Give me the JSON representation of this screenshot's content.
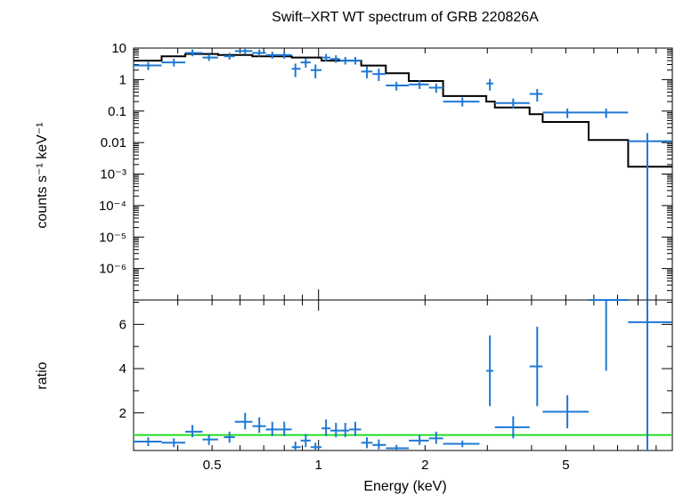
{
  "chart_data": [
    {
      "type": "scatter",
      "panel": "spectrum",
      "title": "Swift–XRT WT spectrum of GRB 220826A",
      "xlabel": "Energy (keV)",
      "ylabel": "counts s⁻¹ keV⁻¹",
      "xscale": "log",
      "yscale": "log",
      "xlim": [
        0.3,
        10.0
      ],
      "ylim": [
        1e-07,
        10
      ],
      "y_ticks": [
        {
          "v": 10,
          "label": "10"
        },
        {
          "v": 1,
          "label": "1"
        },
        {
          "v": 0.1,
          "label": "0.1"
        },
        {
          "v": 0.01,
          "label": "0.01"
        },
        {
          "v": 0.001,
          "label": "10⁻³"
        },
        {
          "v": 0.0001,
          "label": "10⁻⁴"
        },
        {
          "v": 1e-05,
          "label": "10⁻⁵"
        },
        {
          "v": 1e-06,
          "label": "10⁻⁶"
        }
      ],
      "series": [
        {
          "kind": "data",
          "color": "#1f78d4",
          "points": [
            {
              "x": 0.33,
              "xlo": 0.3,
              "xhi": 0.36,
              "y": 2.8,
              "ylo": 2.0,
              "yhi": 3.6
            },
            {
              "x": 0.39,
              "xlo": 0.36,
              "xhi": 0.42,
              "y": 3.5,
              "ylo": 2.6,
              "yhi": 4.6
            },
            {
              "x": 0.44,
              "xlo": 0.42,
              "xhi": 0.47,
              "y": 7.0,
              "ylo": 5.5,
              "yhi": 9.0
            },
            {
              "x": 0.49,
              "xlo": 0.47,
              "xhi": 0.52,
              "y": 5.0,
              "ylo": 3.9,
              "yhi": 6.4
            },
            {
              "x": 0.56,
              "xlo": 0.54,
              "xhi": 0.58,
              "y": 5.5,
              "ylo": 4.3,
              "yhi": 7.0
            },
            {
              "x": 0.62,
              "xlo": 0.58,
              "xhi": 0.65,
              "y": 8.0,
              "ylo": 6.2,
              "yhi": 10.0
            },
            {
              "x": 0.68,
              "xlo": 0.65,
              "xhi": 0.71,
              "y": 7.0,
              "ylo": 5.4,
              "yhi": 9.0
            },
            {
              "x": 0.74,
              "xlo": 0.71,
              "xhi": 0.77,
              "y": 6.0,
              "ylo": 4.6,
              "yhi": 7.6
            },
            {
              "x": 0.8,
              "xlo": 0.77,
              "xhi": 0.84,
              "y": 6.0,
              "ylo": 4.6,
              "yhi": 7.6
            },
            {
              "x": 0.86,
              "xlo": 0.84,
              "xhi": 0.89,
              "y": 2.2,
              "ylo": 1.2,
              "yhi": 3.2
            },
            {
              "x": 0.92,
              "xlo": 0.89,
              "xhi": 0.95,
              "y": 3.5,
              "ylo": 2.4,
              "yhi": 4.8
            },
            {
              "x": 0.98,
              "xlo": 0.95,
              "xhi": 1.02,
              "y": 2.0,
              "ylo": 1.1,
              "yhi": 3.0
            },
            {
              "x": 1.05,
              "xlo": 1.02,
              "xhi": 1.08,
              "y": 5.0,
              "ylo": 3.8,
              "yhi": 6.5
            },
            {
              "x": 1.12,
              "xlo": 1.08,
              "xhi": 1.15,
              "y": 4.5,
              "ylo": 3.4,
              "yhi": 5.9
            },
            {
              "x": 1.19,
              "xlo": 1.15,
              "xhi": 1.22,
              "y": 4.0,
              "ylo": 3.0,
              "yhi": 5.2
            },
            {
              "x": 1.27,
              "xlo": 1.22,
              "xhi": 1.32,
              "y": 4.0,
              "ylo": 3.0,
              "yhi": 5.2
            },
            {
              "x": 1.37,
              "xlo": 1.32,
              "xhi": 1.42,
              "y": 1.8,
              "ylo": 1.1,
              "yhi": 2.6
            },
            {
              "x": 1.48,
              "xlo": 1.42,
              "xhi": 1.55,
              "y": 1.5,
              "ylo": 0.9,
              "yhi": 2.2
            },
            {
              "x": 1.66,
              "xlo": 1.55,
              "xhi": 1.8,
              "y": 0.65,
              "ylo": 0.45,
              "yhi": 0.85
            },
            {
              "x": 1.93,
              "xlo": 1.8,
              "xhi": 2.05,
              "y": 0.7,
              "ylo": 0.5,
              "yhi": 0.95
            },
            {
              "x": 2.15,
              "xlo": 2.05,
              "xhi": 2.25,
              "y": 0.55,
              "ylo": 0.38,
              "yhi": 0.75
            },
            {
              "x": 2.55,
              "xlo": 2.25,
              "xhi": 2.85,
              "y": 0.2,
              "ylo": 0.14,
              "yhi": 0.27
            },
            {
              "x": 3.05,
              "xlo": 2.98,
              "xhi": 3.12,
              "y": 0.75,
              "ylo": 0.45,
              "yhi": 1.05
            },
            {
              "x": 3.55,
              "xlo": 3.15,
              "xhi": 3.95,
              "y": 0.18,
              "ylo": 0.12,
              "yhi": 0.25
            },
            {
              "x": 4.15,
              "xlo": 3.95,
              "xhi": 4.3,
              "y": 0.35,
              "ylo": 0.2,
              "yhi": 0.5
            },
            {
              "x": 5.05,
              "xlo": 4.3,
              "xhi": 5.8,
              "y": 0.09,
              "ylo": 0.06,
              "yhi": 0.12
            },
            {
              "x": 6.5,
              "xlo": 5.8,
              "xhi": 7.5,
              "y": 0.09,
              "ylo": 0.06,
              "yhi": 0.12
            },
            {
              "x": 8.5,
              "xlo": 7.5,
              "xhi": 10.0,
              "y": 0.011,
              "ylo": 1e-07,
              "yhi": 0.02
            }
          ]
        },
        {
          "kind": "model",
          "color": "#000000",
          "steps": [
            {
              "x0": 0.3,
              "x1": 0.36,
              "y": 4.0
            },
            {
              "x0": 0.36,
              "x1": 0.42,
              "y": 5.5
            },
            {
              "x0": 0.42,
              "x1": 0.52,
              "y": 6.5
            },
            {
              "x0": 0.52,
              "x1": 0.65,
              "y": 6.0
            },
            {
              "x0": 0.65,
              "x1": 0.84,
              "y": 5.5
            },
            {
              "x0": 0.84,
              "x1": 1.02,
              "y": 5.0
            },
            {
              "x0": 1.02,
              "x1": 1.32,
              "y": 4.0
            },
            {
              "x0": 1.32,
              "x1": 1.55,
              "y": 2.8
            },
            {
              "x0": 1.55,
              "x1": 1.8,
              "y": 1.6
            },
            {
              "x0": 1.8,
              "x1": 2.25,
              "y": 0.9
            },
            {
              "x0": 2.25,
              "x1": 2.98,
              "y": 0.3
            },
            {
              "x0": 2.98,
              "x1": 3.15,
              "y": 0.2
            },
            {
              "x0": 3.15,
              "x1": 3.95,
              "y": 0.13
            },
            {
              "x0": 3.95,
              "x1": 4.3,
              "y": 0.08
            },
            {
              "x0": 4.3,
              "x1": 5.8,
              "y": 0.045
            },
            {
              "x0": 5.8,
              "x1": 7.5,
              "y": 0.012
            },
            {
              "x0": 7.5,
              "x1": 10.0,
              "y": 0.0017
            }
          ]
        }
      ]
    },
    {
      "type": "scatter",
      "panel": "ratio",
      "xlabel": "Energy (keV)",
      "ylabel": "ratio",
      "xscale": "log",
      "xlim": [
        0.3,
        10.0
      ],
      "ylim": [
        0.3,
        7.1
      ],
      "y_ticks": [
        {
          "v": 2,
          "label": "2"
        },
        {
          "v": 4,
          "label": "4"
        },
        {
          "v": 6,
          "label": "6"
        }
      ],
      "x_ticks": [
        {
          "v": 0.5,
          "label": "0.5"
        },
        {
          "v": 1,
          "label": "1"
        },
        {
          "v": 2,
          "label": "2"
        },
        {
          "v": 5,
          "label": "5"
        }
      ],
      "reference_line": {
        "y": 1.0,
        "color": "#22dd22"
      },
      "series": [
        {
          "kind": "data",
          "color": "#1f78d4",
          "points": [
            {
              "x": 0.33,
              "xlo": 0.3,
              "xhi": 0.36,
              "y": 0.7,
              "ylo": 0.5,
              "yhi": 0.9
            },
            {
              "x": 0.39,
              "xlo": 0.36,
              "xhi": 0.42,
              "y": 0.65,
              "ylo": 0.45,
              "yhi": 0.85
            },
            {
              "x": 0.44,
              "xlo": 0.42,
              "xhi": 0.47,
              "y": 1.15,
              "ylo": 0.9,
              "yhi": 1.45
            },
            {
              "x": 0.49,
              "xlo": 0.47,
              "xhi": 0.52,
              "y": 0.8,
              "ylo": 0.55,
              "yhi": 1.0
            },
            {
              "x": 0.56,
              "xlo": 0.54,
              "xhi": 0.58,
              "y": 0.9,
              "ylo": 0.65,
              "yhi": 1.15
            },
            {
              "x": 0.62,
              "xlo": 0.58,
              "xhi": 0.65,
              "y": 1.6,
              "ylo": 1.25,
              "yhi": 2.0
            },
            {
              "x": 0.68,
              "xlo": 0.65,
              "xhi": 0.71,
              "y": 1.4,
              "ylo": 1.1,
              "yhi": 1.8
            },
            {
              "x": 0.74,
              "xlo": 0.71,
              "xhi": 0.77,
              "y": 1.25,
              "ylo": 0.95,
              "yhi": 1.6
            },
            {
              "x": 0.8,
              "xlo": 0.77,
              "xhi": 0.84,
              "y": 1.25,
              "ylo": 0.95,
              "yhi": 1.6
            },
            {
              "x": 0.86,
              "xlo": 0.84,
              "xhi": 0.89,
              "y": 0.45,
              "ylo": 0.3,
              "yhi": 0.7
            },
            {
              "x": 0.92,
              "xlo": 0.89,
              "xhi": 0.95,
              "y": 0.75,
              "ylo": 0.45,
              "yhi": 1.05
            },
            {
              "x": 0.98,
              "xlo": 0.95,
              "xhi": 1.02,
              "y": 0.45,
              "ylo": 0.3,
              "yhi": 0.65
            },
            {
              "x": 1.05,
              "xlo": 1.02,
              "xhi": 1.08,
              "y": 1.3,
              "ylo": 0.95,
              "yhi": 1.7
            },
            {
              "x": 1.12,
              "xlo": 1.08,
              "xhi": 1.15,
              "y": 1.2,
              "ylo": 0.9,
              "yhi": 1.55
            },
            {
              "x": 1.19,
              "xlo": 1.15,
              "xhi": 1.22,
              "y": 1.2,
              "ylo": 0.9,
              "yhi": 1.55
            },
            {
              "x": 1.27,
              "xlo": 1.22,
              "xhi": 1.32,
              "y": 1.25,
              "ylo": 0.95,
              "yhi": 1.6
            },
            {
              "x": 1.37,
              "xlo": 1.32,
              "xhi": 1.42,
              "y": 0.65,
              "ylo": 0.4,
              "yhi": 0.9
            },
            {
              "x": 1.48,
              "xlo": 1.42,
              "xhi": 1.55,
              "y": 0.55,
              "ylo": 0.35,
              "yhi": 0.8
            },
            {
              "x": 1.66,
              "xlo": 1.55,
              "xhi": 1.8,
              "y": 0.4,
              "ylo": 0.3,
              "yhi": 0.55
            },
            {
              "x": 1.93,
              "xlo": 1.8,
              "xhi": 2.05,
              "y": 0.75,
              "ylo": 0.55,
              "yhi": 1.0
            },
            {
              "x": 2.15,
              "xlo": 2.05,
              "xhi": 2.25,
              "y": 0.85,
              "ylo": 0.6,
              "yhi": 1.15
            },
            {
              "x": 2.55,
              "xlo": 2.25,
              "xhi": 2.85,
              "y": 0.6,
              "ylo": 0.45,
              "yhi": 0.75
            },
            {
              "x": 3.05,
              "xlo": 2.98,
              "xhi": 3.12,
              "y": 3.9,
              "ylo": 2.3,
              "yhi": 5.5
            },
            {
              "x": 3.55,
              "xlo": 3.15,
              "xhi": 3.95,
              "y": 1.35,
              "ylo": 0.85,
              "yhi": 1.85
            },
            {
              "x": 4.15,
              "xlo": 3.95,
              "xhi": 4.3,
              "y": 4.1,
              "ylo": 2.3,
              "yhi": 5.9
            },
            {
              "x": 5.05,
              "xlo": 4.3,
              "xhi": 5.8,
              "y": 2.05,
              "ylo": 1.3,
              "yhi": 2.8
            },
            {
              "x": 6.5,
              "xlo": 5.8,
              "xhi": 7.5,
              "y": 7.1,
              "ylo": 3.9,
              "yhi": 7.1
            },
            {
              "x": 8.5,
              "xlo": 7.5,
              "xhi": 10.0,
              "y": 6.1,
              "ylo": 0.3,
              "yhi": 7.1
            }
          ]
        }
      ]
    }
  ]
}
